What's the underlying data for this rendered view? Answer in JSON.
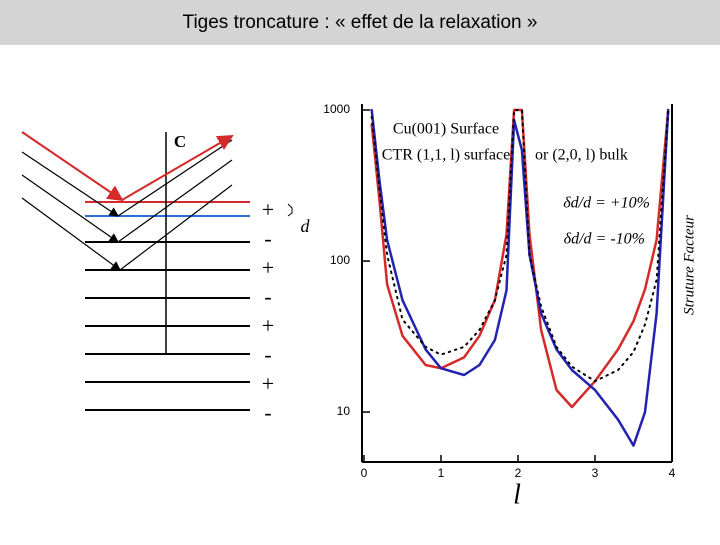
{
  "slide_title": "Tiges troncature : « effet de la relaxation »",
  "diagram": {
    "label_c": "C",
    "signs": [
      "+",
      "-",
      "+",
      "-",
      "+",
      "-",
      "+",
      "-"
    ],
    "label_d": "d"
  },
  "chart_data": {
    "type": "line",
    "annotations": [
      "Cu(001) Surface",
      "CTR (1,1, l) surface",
      "or (2,0, l) bulk"
    ],
    "xlabel": "l",
    "ylabel": "Struture Facteur",
    "x": [
      0.1,
      0.2,
      0.3,
      0.5,
      0.8,
      1.0,
      1.3,
      1.5,
      1.7,
      1.85,
      1.95,
      2.05,
      2.15,
      2.3,
      2.5,
      2.7,
      3.0,
      3.3,
      3.5,
      3.65,
      3.8,
      3.95
    ],
    "series": [
      {
        "name": "δd/d = +10%",
        "color": "#d42a2a",
        "values": [
          800,
          254,
          70,
          32,
          20.5,
          19.5,
          23,
          32,
          55,
          150,
          1000,
          1000,
          150,
          35,
          14,
          10.8,
          16,
          26,
          40,
          65,
          138,
          1000
        ]
      },
      {
        "name": "δd/d = -10%",
        "color": "#2323b0",
        "values": [
          1000,
          344,
          138,
          55,
          26,
          19.5,
          17.6,
          20.5,
          30,
          64,
          858,
          543,
          110,
          45,
          26,
          19,
          14,
          8.9,
          6,
          10,
          45,
          1000
        ]
      },
      {
        "color": "#000000",
        "dotted": true,
        "values": [
          900,
          300,
          110,
          41,
          27,
          24,
          27,
          35,
          55,
          110,
          1000,
          1000,
          110,
          50,
          27,
          20,
          16,
          19,
          25,
          38,
          75,
          1000
        ]
      }
    ],
    "xlim": [
      0,
      4
    ],
    "xticks": [
      0,
      1,
      2,
      3,
      4
    ],
    "ylim": [
      4.67,
      1096
    ],
    "yticks": [
      10,
      100,
      1000
    ],
    "ylog": true
  }
}
